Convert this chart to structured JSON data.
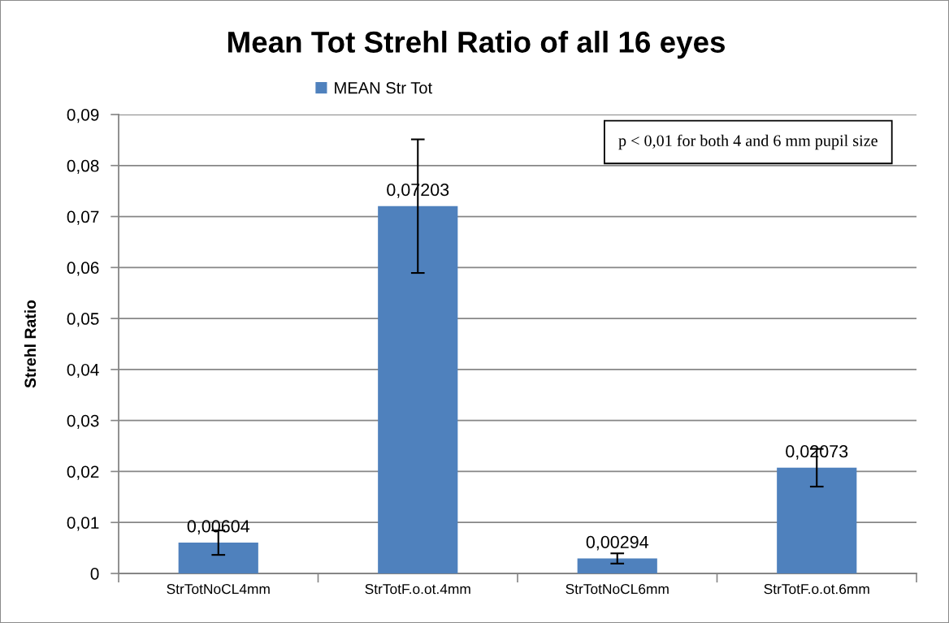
{
  "chart_data": {
    "type": "bar",
    "title": "Mean Tot Strehl Ratio of all 16 eyes",
    "ylabel": "Strehl Ratio",
    "categories": [
      "StrTotNoCL4mm",
      "StrTotF.o.ot.4mm",
      "StrTotNoCL6mm",
      "StrTotF.o.ot.6mm"
    ],
    "series": [
      {
        "name": "MEAN Str Tot",
        "color": "#4f81bd",
        "values": [
          0.00604,
          0.07203,
          0.00294,
          0.02073
        ],
        "errors": [
          0.0024,
          0.0131,
          0.001,
          0.0037
        ],
        "value_labels": [
          "0,00604",
          "0,07203",
          "0,00294",
          "0,02073"
        ]
      }
    ],
    "ylim": [
      0,
      0.09
    ],
    "yticks": [
      0,
      {
        "value": 0.01,
        "label": "0,01"
      },
      {
        "value": 0.02,
        "label": "0,02"
      },
      {
        "value": 0.03,
        "label": "0,03"
      },
      {
        "value": 0.04,
        "label": "0,04"
      },
      {
        "value": 0.05,
        "label": "0,05"
      },
      {
        "value": 0.06,
        "label": "0,06"
      },
      {
        "value": 0.07,
        "label": "0,07"
      },
      {
        "value": 0.08,
        "label": "0,08"
      },
      {
        "value": 0.09,
        "label": "0,09"
      }
    ],
    "grid": "y",
    "legend": "top",
    "annotations": [
      "p < 0,01 for both 4 and 6 mm pupil size"
    ]
  }
}
